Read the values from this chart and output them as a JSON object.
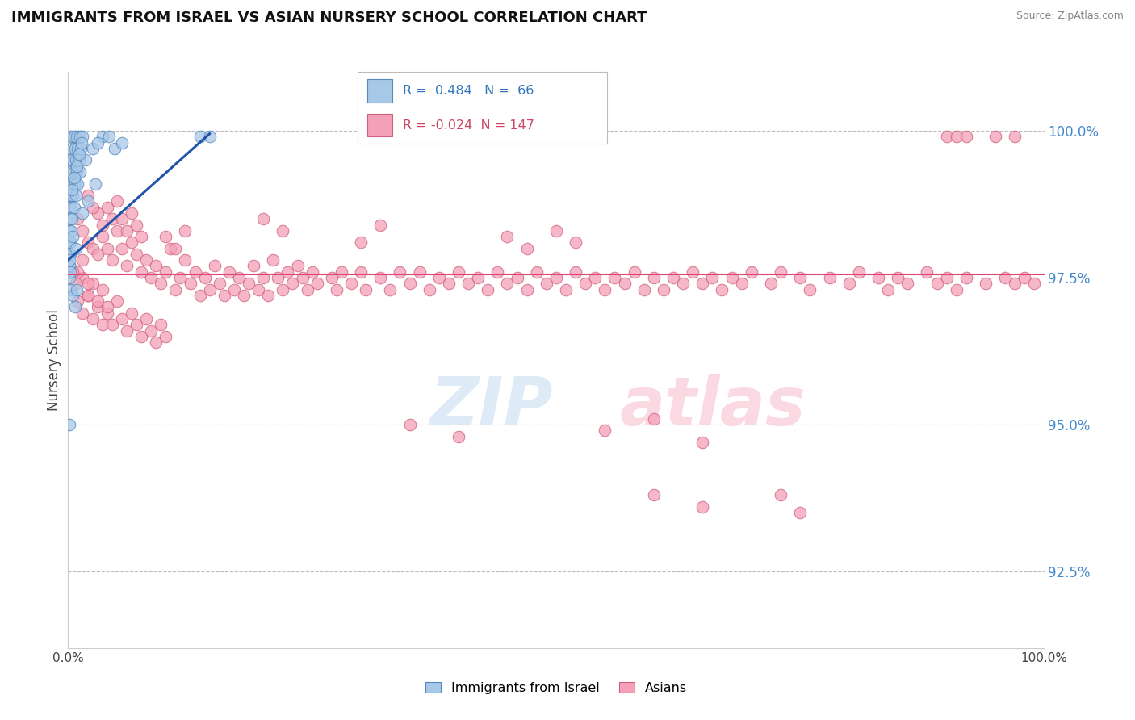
{
  "title": "IMMIGRANTS FROM ISRAEL VS ASIAN NURSERY SCHOOL CORRELATION CHART",
  "source": "Source: ZipAtlas.com",
  "ylabel": "Nursery School",
  "legend_blue_r": "0.484",
  "legend_blue_n": "66",
  "legend_pink_r": "-0.024",
  "legend_pink_n": "147",
  "legend_label_blue": "Immigrants from Israel",
  "legend_label_pink": "Asians",
  "blue_color": "#a8c8e8",
  "pink_color": "#f4a0b8",
  "blue_edge_color": "#5588bb",
  "pink_edge_color": "#d06080",
  "blue_line_color": "#2255aa",
  "pink_line_color": "#dd4477",
  "yticks": [
    92.5,
    95.0,
    97.5,
    100.0
  ],
  "ytick_labels": [
    "92.5%",
    "95.0%",
    "97.5%",
    "100.0%"
  ],
  "xmin": 0.0,
  "xmax": 100.0,
  "ymin": 91.2,
  "ymax": 101.0,
  "background_color": "#ffffff",
  "blue_dots": [
    [
      0.3,
      99.9
    ],
    [
      0.6,
      99.9
    ],
    [
      0.9,
      99.9
    ],
    [
      1.2,
      99.9
    ],
    [
      1.5,
      99.9
    ],
    [
      0.4,
      99.7
    ],
    [
      0.7,
      99.7
    ],
    [
      1.0,
      99.7
    ],
    [
      1.3,
      99.7
    ],
    [
      0.2,
      99.5
    ],
    [
      0.5,
      99.5
    ],
    [
      0.8,
      99.5
    ],
    [
      1.1,
      99.5
    ],
    [
      0.3,
      99.3
    ],
    [
      0.6,
      99.3
    ],
    [
      0.9,
      99.3
    ],
    [
      1.2,
      99.3
    ],
    [
      0.1,
      99.1
    ],
    [
      0.4,
      99.1
    ],
    [
      0.7,
      99.1
    ],
    [
      1.0,
      99.1
    ],
    [
      0.2,
      98.9
    ],
    [
      0.5,
      98.9
    ],
    [
      0.8,
      98.9
    ],
    [
      0.1,
      98.7
    ],
    [
      0.3,
      98.7
    ],
    [
      0.6,
      98.7
    ],
    [
      0.2,
      98.5
    ],
    [
      0.4,
      98.5
    ],
    [
      0.1,
      98.3
    ],
    [
      0.3,
      98.3
    ],
    [
      0.1,
      98.1
    ],
    [
      0.2,
      98.1
    ],
    [
      0.1,
      97.9
    ],
    [
      0.2,
      97.9
    ],
    [
      0.1,
      97.7
    ],
    [
      0.15,
      97.7
    ],
    [
      0.1,
      97.5
    ],
    [
      0.2,
      97.3
    ],
    [
      3.5,
      99.9
    ],
    [
      4.2,
      99.9
    ],
    [
      13.5,
      99.9
    ],
    [
      14.5,
      99.9
    ],
    [
      0.1,
      95.0
    ],
    [
      1.8,
      99.5
    ],
    [
      2.5,
      99.7
    ],
    [
      3.0,
      99.8
    ],
    [
      0.15,
      97.8
    ],
    [
      0.25,
      97.6
    ],
    [
      0.5,
      98.2
    ],
    [
      0.8,
      98.0
    ],
    [
      1.5,
      98.6
    ],
    [
      2.0,
      98.8
    ],
    [
      2.8,
      99.1
    ],
    [
      0.4,
      99.0
    ],
    [
      0.6,
      99.2
    ],
    [
      0.9,
      99.4
    ],
    [
      1.1,
      99.6
    ],
    [
      1.4,
      99.8
    ],
    [
      0.5,
      97.2
    ],
    [
      0.7,
      97.0
    ],
    [
      0.9,
      97.3
    ],
    [
      4.8,
      99.7
    ],
    [
      5.5,
      99.8
    ]
  ],
  "pink_dots": [
    [
      1.0,
      98.5
    ],
    [
      1.5,
      98.3
    ],
    [
      2.0,
      98.1
    ],
    [
      2.5,
      98.0
    ],
    [
      3.0,
      97.9
    ],
    [
      3.5,
      98.2
    ],
    [
      4.0,
      98.0
    ],
    [
      4.5,
      97.8
    ],
    [
      5.0,
      98.3
    ],
    [
      5.5,
      98.0
    ],
    [
      6.0,
      97.7
    ],
    [
      6.5,
      98.1
    ],
    [
      7.0,
      97.9
    ],
    [
      7.5,
      97.6
    ],
    [
      8.0,
      97.8
    ],
    [
      8.5,
      97.5
    ],
    [
      9.0,
      97.7
    ],
    [
      9.5,
      97.4
    ],
    [
      10.0,
      97.6
    ],
    [
      10.5,
      98.0
    ],
    [
      11.0,
      97.3
    ],
    [
      11.5,
      97.5
    ],
    [
      12.0,
      97.8
    ],
    [
      12.5,
      97.4
    ],
    [
      13.0,
      97.6
    ],
    [
      13.5,
      97.2
    ],
    [
      14.0,
      97.5
    ],
    [
      14.5,
      97.3
    ],
    [
      15.0,
      97.7
    ],
    [
      15.5,
      97.4
    ],
    [
      16.0,
      97.2
    ],
    [
      16.5,
      97.6
    ],
    [
      17.0,
      97.3
    ],
    [
      17.5,
      97.5
    ],
    [
      18.0,
      97.2
    ],
    [
      18.5,
      97.4
    ],
    [
      19.0,
      97.7
    ],
    [
      19.5,
      97.3
    ],
    [
      20.0,
      97.5
    ],
    [
      20.5,
      97.2
    ],
    [
      21.0,
      97.8
    ],
    [
      21.5,
      97.5
    ],
    [
      22.0,
      97.3
    ],
    [
      22.5,
      97.6
    ],
    [
      23.0,
      97.4
    ],
    [
      23.5,
      97.7
    ],
    [
      24.0,
      97.5
    ],
    [
      24.5,
      97.3
    ],
    [
      25.0,
      97.6
    ],
    [
      25.5,
      97.4
    ],
    [
      27.0,
      97.5
    ],
    [
      27.5,
      97.3
    ],
    [
      28.0,
      97.6
    ],
    [
      29.0,
      97.4
    ],
    [
      30.0,
      97.6
    ],
    [
      30.5,
      97.3
    ],
    [
      32.0,
      97.5
    ],
    [
      33.0,
      97.3
    ],
    [
      34.0,
      97.6
    ],
    [
      35.0,
      97.4
    ],
    [
      36.0,
      97.6
    ],
    [
      37.0,
      97.3
    ],
    [
      38.0,
      97.5
    ],
    [
      39.0,
      97.4
    ],
    [
      40.0,
      97.6
    ],
    [
      41.0,
      97.4
    ],
    [
      42.0,
      97.5
    ],
    [
      43.0,
      97.3
    ],
    [
      44.0,
      97.6
    ],
    [
      45.0,
      97.4
    ],
    [
      46.0,
      97.5
    ],
    [
      47.0,
      97.3
    ],
    [
      48.0,
      97.6
    ],
    [
      49.0,
      97.4
    ],
    [
      50.0,
      97.5
    ],
    [
      51.0,
      97.3
    ],
    [
      52.0,
      97.6
    ],
    [
      53.0,
      97.4
    ],
    [
      54.0,
      97.5
    ],
    [
      55.0,
      97.3
    ],
    [
      56.0,
      97.5
    ],
    [
      57.0,
      97.4
    ],
    [
      58.0,
      97.6
    ],
    [
      59.0,
      97.3
    ],
    [
      60.0,
      97.5
    ],
    [
      61.0,
      97.3
    ],
    [
      62.0,
      97.5
    ],
    [
      63.0,
      97.4
    ],
    [
      64.0,
      97.6
    ],
    [
      65.0,
      97.4
    ],
    [
      66.0,
      97.5
    ],
    [
      67.0,
      97.3
    ],
    [
      68.0,
      97.5
    ],
    [
      69.0,
      97.4
    ],
    [
      70.0,
      97.6
    ],
    [
      72.0,
      97.4
    ],
    [
      73.0,
      97.6
    ],
    [
      75.0,
      97.5
    ],
    [
      76.0,
      97.3
    ],
    [
      78.0,
      97.5
    ],
    [
      80.0,
      97.4
    ],
    [
      81.0,
      97.6
    ],
    [
      83.0,
      97.5
    ],
    [
      84.0,
      97.3
    ],
    [
      85.0,
      97.5
    ],
    [
      86.0,
      97.4
    ],
    [
      88.0,
      97.6
    ],
    [
      89.0,
      97.4
    ],
    [
      90.0,
      97.5
    ],
    [
      91.0,
      97.3
    ],
    [
      92.0,
      97.5
    ],
    [
      94.0,
      97.4
    ],
    [
      96.0,
      97.5
    ],
    [
      97.0,
      97.4
    ],
    [
      98.0,
      97.5
    ],
    [
      99.0,
      97.4
    ],
    [
      1.0,
      97.1
    ],
    [
      1.5,
      96.9
    ],
    [
      2.0,
      97.2
    ],
    [
      2.5,
      96.8
    ],
    [
      3.0,
      97.0
    ],
    [
      3.5,
      96.7
    ],
    [
      4.0,
      96.9
    ],
    [
      4.5,
      96.7
    ],
    [
      5.0,
      97.1
    ],
    [
      5.5,
      96.8
    ],
    [
      6.0,
      96.6
    ],
    [
      6.5,
      96.9
    ],
    [
      7.0,
      96.7
    ],
    [
      7.5,
      96.5
    ],
    [
      8.0,
      96.8
    ],
    [
      8.5,
      96.6
    ],
    [
      9.0,
      96.4
    ],
    [
      9.5,
      96.7
    ],
    [
      10.0,
      96.5
    ],
    [
      3.0,
      98.6
    ],
    [
      3.5,
      98.4
    ],
    [
      4.0,
      98.7
    ],
    [
      4.5,
      98.5
    ],
    [
      5.0,
      98.8
    ],
    [
      5.5,
      98.5
    ],
    [
      6.0,
      98.3
    ],
    [
      6.5,
      98.6
    ],
    [
      7.0,
      98.4
    ],
    [
      7.5,
      98.2
    ],
    [
      2.0,
      98.9
    ],
    [
      2.5,
      98.7
    ],
    [
      1.5,
      97.5
    ],
    [
      2.0,
      97.2
    ],
    [
      2.5,
      97.4
    ],
    [
      3.0,
      97.1
    ],
    [
      3.5,
      97.3
    ],
    [
      4.0,
      97.0
    ],
    [
      35.0,
      95.0
    ],
    [
      40.0,
      94.8
    ],
    [
      55.0,
      94.9
    ],
    [
      60.0,
      95.1
    ],
    [
      65.0,
      94.7
    ],
    [
      60.0,
      93.8
    ],
    [
      65.0,
      93.6
    ],
    [
      90.0,
      99.9
    ],
    [
      91.0,
      99.9
    ],
    [
      92.0,
      99.9
    ],
    [
      95.0,
      99.9
    ],
    [
      97.0,
      99.9
    ],
    [
      1.0,
      97.6
    ],
    [
      2.0,
      97.4
    ],
    [
      1.5,
      97.8
    ],
    [
      10.0,
      98.2
    ],
    [
      11.0,
      98.0
    ],
    [
      12.0,
      98.3
    ],
    [
      20.0,
      98.5
    ],
    [
      22.0,
      98.3
    ],
    [
      30.0,
      98.1
    ],
    [
      32.0,
      98.4
    ],
    [
      45.0,
      98.2
    ],
    [
      47.0,
      98.0
    ],
    [
      50.0,
      98.3
    ],
    [
      52.0,
      98.1
    ],
    [
      0.5,
      97.6
    ],
    [
      0.8,
      97.4
    ],
    [
      73.0,
      93.8
    ],
    [
      75.0,
      93.5
    ]
  ],
  "pink_trendline_y": 97.55,
  "blue_trendline_x0": 0.0,
  "blue_trendline_y0": 97.8,
  "blue_trendline_x1": 14.5,
  "blue_trendline_y1": 99.95
}
